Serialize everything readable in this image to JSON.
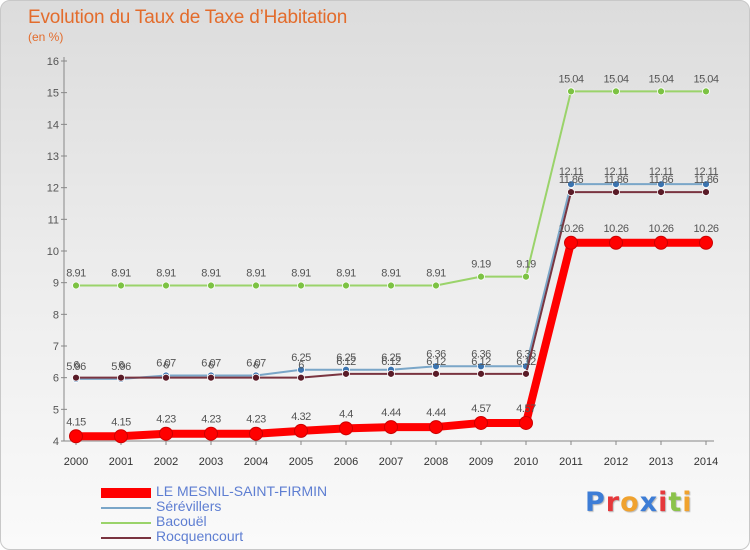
{
  "header": {
    "title": "Evolution du Taux de Taxe d’Habitation",
    "unit": "(en %)"
  },
  "logo": {
    "letters": [
      "P",
      "r",
      "o",
      "x",
      "i",
      "t",
      "i"
    ],
    "colors": [
      "#3d7dd6",
      "#e5383b",
      "#f0a22e",
      "#3d7dd6",
      "#e5383b",
      "#8bc34a",
      "#f0a22e"
    ]
  },
  "chart_data": {
    "type": "line",
    "title": "Evolution du Taux de Taxe d’Habitation",
    "ylabel": "(en %)",
    "xlabel": "",
    "ylim": [
      4,
      16
    ],
    "yticks": [
      4,
      5,
      6,
      7,
      8,
      9,
      10,
      11,
      12,
      13,
      14,
      15,
      16
    ],
    "grid": false,
    "legend_placement": "bottom-left",
    "x": [
      "2000",
      "2001",
      "2002",
      "2003",
      "2004",
      "2005",
      "2006",
      "2007",
      "2008",
      "2009",
      "2010",
      "2011",
      "2012",
      "2013",
      "2014"
    ],
    "series": [
      {
        "name": "Bacouël",
        "color": "#9ad36a",
        "marker": "#7cc243",
        "values": [
          8.91,
          8.91,
          8.91,
          8.91,
          8.91,
          8.91,
          8.91,
          8.91,
          8.91,
          9.19,
          9.19,
          15.04,
          15.04,
          15.04,
          15.04
        ],
        "labels": [
          "8.91",
          "8.91",
          "8.91",
          "8.91",
          "8.91",
          "8.91",
          "8.91",
          "8.91",
          "8.91",
          "9.19",
          "9.19",
          "15.04",
          "15.04",
          "15.04",
          "15.04"
        ]
      },
      {
        "name": "Sérévillers",
        "color": "#7aa6c8",
        "marker": "#3b74b0",
        "values": [
          5.96,
          5.96,
          6.07,
          6.07,
          6.07,
          6.25,
          6.25,
          6.25,
          6.36,
          6.36,
          6.36,
          12.11,
          12.11,
          12.11,
          12.11
        ],
        "labels": [
          "5.96",
          "5.96",
          "6.07",
          "6.07",
          "6.07",
          "6.25",
          "6.25",
          "6.25",
          "6.36",
          "6.36",
          "6.36",
          "12.11",
          "12.11",
          "12.11",
          "12.11"
        ]
      },
      {
        "name": "Rocquencourt",
        "color": "#7a3440",
        "marker": "#5a1c28",
        "values": [
          6,
          6,
          6,
          6,
          6,
          6,
          6.12,
          6.12,
          6.12,
          6.12,
          6.12,
          11.86,
          11.86,
          11.86,
          11.86
        ],
        "labels": [
          "6",
          "6",
          "6",
          "6",
          "6",
          "6",
          "6.12",
          "6.12",
          "6.12",
          "6.12",
          "6.12",
          "11.86",
          "11.86",
          "11.86",
          "11.86"
        ]
      },
      {
        "name": "LE MESNIL-SAINT-FIRMIN",
        "color": "#ff0000",
        "marker": "#ff0000",
        "values": [
          4.15,
          4.15,
          4.23,
          4.23,
          4.23,
          4.32,
          4.4,
          4.44,
          4.44,
          4.57,
          4.57,
          10.26,
          10.26,
          10.26,
          10.26
        ],
        "labels": [
          "4.15",
          "4.15",
          "4.23",
          "4.23",
          "4.23",
          "4.32",
          "4.4",
          "4.44",
          "4.44",
          "4.57",
          "4.57",
          "10.26",
          "10.26",
          "10.26",
          "10.26"
        ]
      }
    ],
    "legend": [
      {
        "name": "LE MESNIL-SAINT-FIRMIN",
        "color": "#ff0000"
      },
      {
        "name": "Sérévillers",
        "color": "#7aa6c8"
      },
      {
        "name": "Bacouël",
        "color": "#9ad36a"
      },
      {
        "name": "Rocquencourt",
        "color": "#7a3440"
      }
    ]
  }
}
